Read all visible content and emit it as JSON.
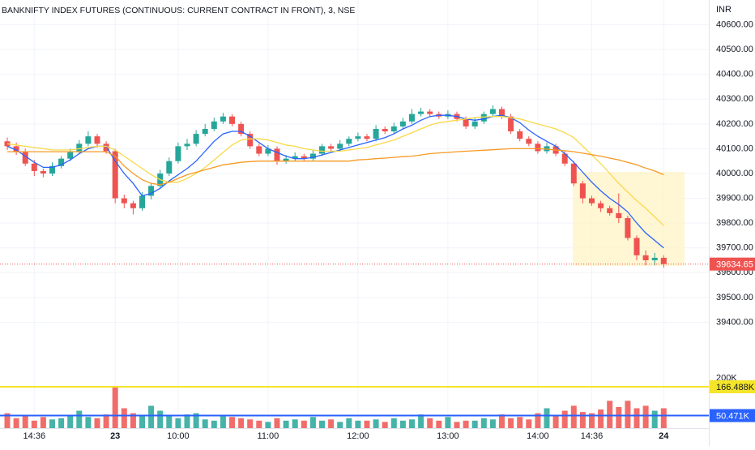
{
  "chart_data": {
    "type": "candlestick",
    "title": "BANKNIFTY INDEX FUTURES (CONTINUOUS: CURRENT CONTRACT IN FRONT), 3, NSE",
    "currency": "INR",
    "categories": [
      null,
      null,
      null,
      "14:36",
      null,
      null,
      null,
      null,
      null,
      null,
      null,
      null,
      "23",
      null,
      null,
      null,
      null,
      null,
      null,
      "10:00",
      null,
      null,
      null,
      null,
      null,
      null,
      null,
      null,
      null,
      "11:00",
      null,
      null,
      null,
      null,
      null,
      null,
      null,
      null,
      null,
      "12:00",
      null,
      null,
      null,
      null,
      null,
      null,
      null,
      null,
      null,
      "13:00",
      null,
      null,
      null,
      null,
      null,
      null,
      null,
      null,
      null,
      "14:00",
      null,
      null,
      null,
      null,
      null,
      "14:36",
      null,
      null,
      null,
      null,
      null,
      null,
      null,
      "24"
    ],
    "open": [
      40130,
      40110,
      40090,
      40040,
      40010,
      40000,
      40030,
      40060,
      40090,
      40120,
      40150,
      40120,
      40090,
      39900,
      39880,
      39860,
      39910,
      39950,
      40000,
      40050,
      40110,
      40120,
      40160,
      40180,
      40210,
      40230,
      40200,
      40160,
      40110,
      40080,
      40100,
      40050,
      40060,
      40070,
      40060,
      40080,
      40110,
      40100,
      40120,
      40140,
      40150,
      40140,
      40180,
      40170,
      40190,
      40210,
      40240,
      40250,
      40240,
      40230,
      40240,
      40220,
      40190,
      40210,
      40240,
      40260,
      40230,
      40170,
      40140,
      40120,
      40090,
      40110,
      40080,
      40040,
      39960,
      39900,
      39880,
      39860,
      39840,
      39820,
      39740,
      39670,
      39650,
      39660
    ],
    "high": [
      40145,
      40125,
      40100,
      40055,
      40020,
      40045,
      40070,
      40100,
      40135,
      40170,
      40160,
      40130,
      40100,
      39915,
      39890,
      39925,
      39960,
      40015,
      40065,
      40125,
      40140,
      40175,
      40200,
      40225,
      40245,
      40240,
      40210,
      40170,
      40120,
      40115,
      40110,
      40075,
      40085,
      40080,
      40095,
      40120,
      40120,
      40135,
      40150,
      40165,
      40160,
      40195,
      40190,
      40205,
      40225,
      40260,
      40265,
      40260,
      40250,
      40255,
      40250,
      40230,
      40225,
      40250,
      40275,
      40270,
      40240,
      40180,
      40150,
      40130,
      40125,
      40120,
      40090,
      40050,
      39970,
      39910,
      39890,
      39870,
      39920,
      39830,
      39750,
      39690,
      39680,
      39670
    ],
    "low": [
      40095,
      40075,
      40030,
      39990,
      39985,
      39990,
      40020,
      40050,
      40080,
      40110,
      40105,
      40080,
      39880,
      39860,
      39835,
      39850,
      39895,
      39940,
      39990,
      40040,
      40095,
      40110,
      40150,
      40170,
      40200,
      40190,
      40150,
      40100,
      40070,
      40070,
      40035,
      40040,
      40050,
      40050,
      40050,
      40070,
      40090,
      40090,
      40110,
      40130,
      40130,
      40130,
      40160,
      40160,
      40180,
      40200,
      40230,
      40230,
      40220,
      40220,
      40210,
      40180,
      40180,
      40200,
      40230,
      40220,
      40160,
      40130,
      40110,
      40080,
      40080,
      40070,
      40030,
      39950,
      39880,
      39870,
      39845,
      39830,
      39800,
      39730,
      39650,
      39630,
      39630,
      39620
    ],
    "close": [
      40110,
      40090,
      40040,
      40010,
      40000,
      40030,
      40060,
      40090,
      40120,
      40150,
      40120,
      40090,
      39900,
      39880,
      39860,
      39910,
      39950,
      40000,
      40050,
      40110,
      40120,
      40160,
      40180,
      40210,
      40230,
      40200,
      40160,
      40110,
      40080,
      40100,
      40050,
      40060,
      40070,
      40060,
      40080,
      40110,
      40100,
      40120,
      40140,
      40150,
      40140,
      40180,
      40170,
      40190,
      40210,
      40240,
      40250,
      40240,
      40230,
      40240,
      40220,
      40190,
      40210,
      40240,
      40260,
      40230,
      40170,
      40140,
      40120,
      40090,
      40110,
      40080,
      40040,
      39960,
      39900,
      39880,
      39860,
      39840,
      39820,
      39740,
      39670,
      39650,
      39660,
      39634.65
    ],
    "volume": [
      60000,
      40000,
      50000,
      30000,
      45000,
      35000,
      40000,
      50000,
      70000,
      45000,
      40000,
      55000,
      170000,
      80000,
      60000,
      50000,
      90000,
      70000,
      50000,
      40000,
      55000,
      60000,
      35000,
      30000,
      50000,
      45000,
      40000,
      35000,
      30000,
      25000,
      40000,
      30000,
      35000,
      30000,
      45000,
      30000,
      35000,
      25000,
      40000,
      30000,
      30000,
      35000,
      25000,
      40000,
      30000,
      35000,
      55000,
      40000,
      30000,
      45000,
      25000,
      30000,
      30000,
      40000,
      35000,
      55000,
      40000,
      45000,
      35000,
      60000,
      80000,
      50000,
      70000,
      90000,
      65000,
      60000,
      75000,
      110000,
      85000,
      110000,
      80000,
      90000,
      70000,
      80000
    ],
    "series": [
      {
        "color": "#2962ff",
        "values": [
          40110,
          40095,
          40070,
          40045,
          40025,
          40025,
          40035,
          40055,
          40080,
          40100,
          40110,
          40110,
          40050,
          40000,
          39960,
          39910,
          39920,
          39940,
          39970,
          39995,
          40020,
          40050,
          40090,
          40130,
          40160,
          40170,
          40170,
          40150,
          40125,
          40100,
          40085,
          40070,
          40060,
          40060,
          40065,
          40075,
          40085,
          40095,
          40105,
          40115,
          40125,
          40135,
          40145,
          40160,
          40180,
          40195,
          40215,
          40230,
          40235,
          40235,
          40230,
          40220,
          40215,
          40220,
          40230,
          40235,
          40225,
          40205,
          40175,
          40150,
          40130,
          40110,
          40080,
          40045,
          40005,
          39965,
          39930,
          39900,
          39875,
          39845,
          39800,
          39760,
          39730,
          39700
        ]
      },
      {
        "color": "#f9d949",
        "values": [
          40120,
          40115,
          40110,
          40105,
          40100,
          40095,
          40095,
          40095,
          40100,
          40105,
          40110,
          40110,
          40095,
          40070,
          40045,
          40020,
          39995,
          39975,
          39965,
          39965,
          39980,
          40000,
          40025,
          40055,
          40085,
          40115,
          40135,
          40140,
          40140,
          40135,
          40125,
          40115,
          40110,
          40100,
          40095,
          40090,
          40090,
          40090,
          40095,
          40100,
          40105,
          40115,
          40125,
          40135,
          40150,
          40165,
          40180,
          40195,
          40205,
          40210,
          40215,
          40220,
          40225,
          40228,
          40230,
          40230,
          40225,
          40220,
          40210,
          40200,
          40190,
          40180,
          40165,
          40145,
          40110,
          40075,
          40040,
          40000,
          39960,
          39925,
          39890,
          39860,
          39825,
          39790
        ]
      },
      {
        "color": "#f59a23",
        "values": [
          40088,
          40088,
          40088,
          40088,
          40088,
          40088,
          40088,
          40088,
          40088,
          40088,
          40088,
          40088,
          40070,
          40030,
          40000,
          39975,
          39960,
          39955,
          39965,
          39980,
          39995,
          40005,
          40015,
          40025,
          40035,
          40040,
          40045,
          40048,
          40050,
          40050,
          40050,
          40050,
          40050,
          40050,
          40050,
          40050,
          40050,
          40050,
          40050,
          40055,
          40057,
          40060,
          40062,
          40065,
          40068,
          40070,
          40075,
          40080,
          40083,
          40085,
          40088,
          40090,
          40092,
          40094,
          40096,
          40098,
          40100,
          40100,
          40100,
          40100,
          40098,
          40095,
          40092,
          40088,
          40082,
          40076,
          40070,
          40062,
          40055,
          40045,
          40035,
          40022,
          40010,
          39995
        ]
      }
    ],
    "up_color": "#26a69a",
    "down_color": "#ef5350",
    "ylim": [
      39300,
      40700
    ],
    "yticks": [
      {
        "value": 39400,
        "label": "39400.00"
      },
      {
        "value": 39500,
        "label": "39500.00"
      },
      {
        "value": 39600,
        "label": "39600.00"
      },
      {
        "value": 39700,
        "label": "39700.00"
      },
      {
        "value": 39800,
        "label": "39800.00"
      },
      {
        "value": 39900,
        "label": "39900.00"
      },
      {
        "value": 40000,
        "label": "40000.00"
      },
      {
        "value": 40100,
        "label": "40100.00"
      },
      {
        "value": 40200,
        "label": "40200.00"
      },
      {
        "value": 40300,
        "label": "40300.00"
      },
      {
        "value": 40400,
        "label": "40400.00"
      },
      {
        "value": 40500,
        "label": "40500.00"
      },
      {
        "value": 40600,
        "label": "40600.00"
      }
    ],
    "volume_lim": [
      0,
      320000
    ],
    "volume_ticks": [
      {
        "value": 200000,
        "label": "200K"
      }
    ],
    "volume_lines": [
      {
        "value": 166488,
        "label": "166.488K",
        "color": "#f5e52a"
      },
      {
        "value": 50471,
        "label": "50.471K",
        "color": "#2962ff"
      }
    ],
    "grid": true
  }
}
